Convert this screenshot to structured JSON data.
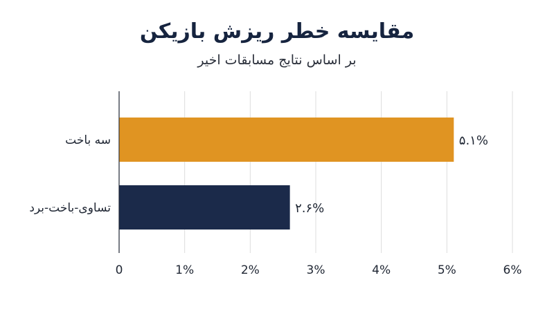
{
  "chart_data": {
    "type": "bar",
    "orientation": "horizontal",
    "title": "مقایسه خطر ریزش بازیکن",
    "subtitle": "بر اساس نتایج مسابقات اخیر",
    "categories": [
      "سه باخت",
      "تساوی-باخت-برد"
    ],
    "values": [
      5.1,
      2.6
    ],
    "data_labels": [
      "۵.۱%",
      "۲.۶%"
    ],
    "colors": [
      "#E09422",
      "#1B2A4A"
    ],
    "xlim": [
      0,
      6
    ],
    "xticks": [
      "0",
      "1%",
      "2%",
      "3%",
      "4%",
      "5%",
      "6%"
    ],
    "grid": true
  }
}
